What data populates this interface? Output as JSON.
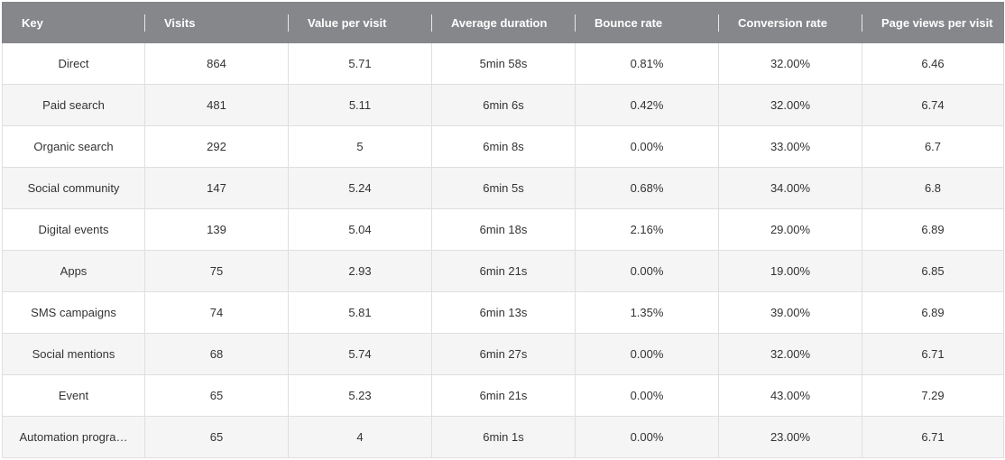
{
  "table": {
    "columns": [
      "Key",
      "Visits",
      "Value per visit",
      "Average duration",
      "Bounce rate",
      "Conversion rate",
      "Page views per visit"
    ],
    "rows": [
      [
        "Direct",
        "864",
        "5.71",
        "5min 58s",
        "0.81%",
        "32.00%",
        "6.46"
      ],
      [
        "Paid search",
        "481",
        "5.11",
        "6min 6s",
        "0.42%",
        "32.00%",
        "6.74"
      ],
      [
        "Organic search",
        "292",
        "5",
        "6min 8s",
        "0.00%",
        "33.00%",
        "6.7"
      ],
      [
        "Social community",
        "147",
        "5.24",
        "6min 5s",
        "0.68%",
        "34.00%",
        "6.8"
      ],
      [
        "Digital events",
        "139",
        "5.04",
        "6min 18s",
        "2.16%",
        "29.00%",
        "6.89"
      ],
      [
        "Apps",
        "75",
        "2.93",
        "6min 21s",
        "0.00%",
        "19.00%",
        "6.85"
      ],
      [
        "SMS campaigns",
        "74",
        "5.81",
        "6min 13s",
        "1.35%",
        "39.00%",
        "6.89"
      ],
      [
        "Social mentions",
        "68",
        "5.74",
        "6min 27s",
        "0.00%",
        "32.00%",
        "6.71"
      ],
      [
        "Event",
        "65",
        "5.23",
        "6min 21s",
        "0.00%",
        "43.00%",
        "7.29"
      ],
      [
        "Automation progra…",
        "65",
        "4",
        "6min 1s",
        "0.00%",
        "23.00%",
        "6.71"
      ]
    ]
  },
  "colors": {
    "header_bg": "#85878a",
    "header_text": "#ffffff",
    "row_alt_bg": "#f5f5f5",
    "border": "#dfdfdf"
  }
}
